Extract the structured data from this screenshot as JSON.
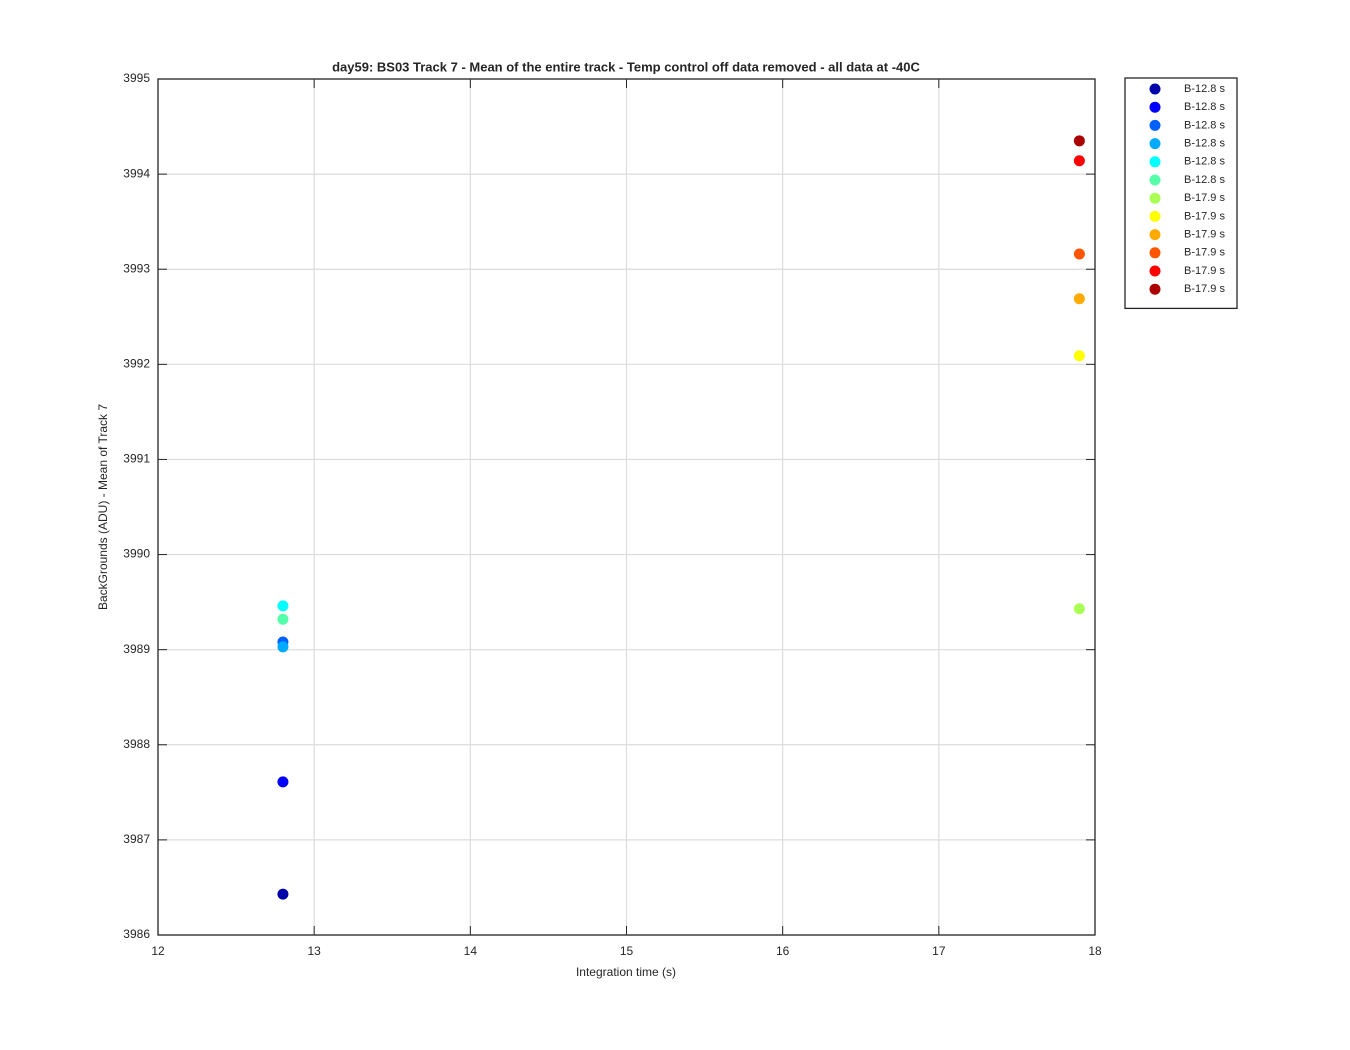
{
  "chart_data": {
    "type": "scatter",
    "title": "day59: BS03  Track 7 - Mean of the entire track - Temp control off data removed - all data at -40C",
    "x_label": "Integration time (s)",
    "y_label": "BackGrounds (ADU) - Mean of Track 7",
    "xlim": [
      12,
      18
    ],
    "xticks": [
      12,
      13,
      14,
      15,
      16,
      17,
      18
    ],
    "ylim": [
      3986,
      3995
    ],
    "yticks": [
      3986,
      3987,
      3988,
      3989,
      3990,
      3991,
      3992,
      3993,
      3994,
      3995
    ],
    "grid": true,
    "legend": "northeastoutside",
    "series": [
      {
        "name": "B-12.8 s",
        "color": "#0000aa",
        "x": [
          12.8
        ],
        "values": [
          3986.43
        ]
      },
      {
        "name": "B-12.8 s",
        "color": "#0000ff",
        "x": [
          12.8
        ],
        "values": [
          3987.61
        ]
      },
      {
        "name": "B-12.8 s",
        "color": "#0060ff",
        "x": [
          12.8
        ],
        "values": [
          3989.08
        ]
      },
      {
        "name": "B-12.8 s",
        "color": "#00aaff",
        "x": [
          12.8
        ],
        "values": [
          3989.03
        ]
      },
      {
        "name": "B-12.8 s",
        "color": "#00ffff",
        "x": [
          12.8
        ],
        "values": [
          3989.46
        ]
      },
      {
        "name": "B-12.8 s",
        "color": "#55ffaa",
        "x": [
          12.8
        ],
        "values": [
          3989.32
        ]
      },
      {
        "name": "B-17.9 s",
        "color": "#aaff55",
        "x": [
          17.9
        ],
        "values": [
          3989.43
        ]
      },
      {
        "name": "B-17.9 s",
        "color": "#ffff00",
        "x": [
          17.9
        ],
        "values": [
          3992.09
        ]
      },
      {
        "name": "B-17.9 s",
        "color": "#ffaa00",
        "x": [
          17.9
        ],
        "values": [
          3992.69
        ]
      },
      {
        "name": "B-17.9 s",
        "color": "#ff5500",
        "x": [
          17.9
        ],
        "values": [
          3993.16
        ]
      },
      {
        "name": "B-17.9 s",
        "color": "#ff0000",
        "x": [
          17.9
        ],
        "values": [
          3994.14
        ]
      },
      {
        "name": "B-17.9 s",
        "color": "#aa0000",
        "x": [
          17.9
        ],
        "values": [
          3994.35
        ]
      }
    ]
  }
}
